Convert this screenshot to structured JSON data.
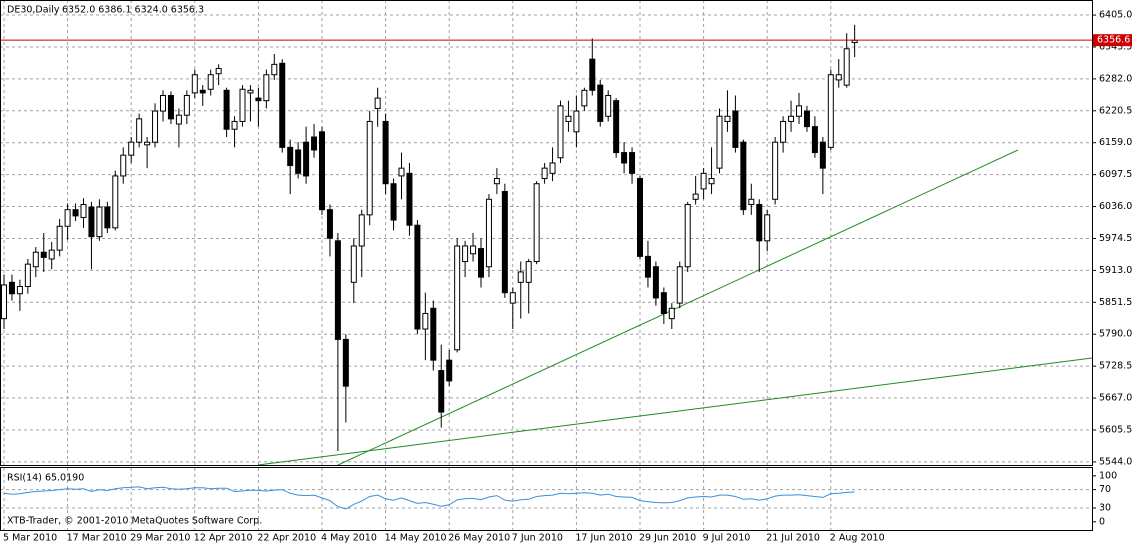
{
  "watermark": "XTB-Trader, © 2001-2010 MetaQuotes Software Corp.",
  "chart_data": [
    {
      "type": "candlestick",
      "title": "DE30,Daily",
      "quote": "6352.0 6386.1 6324.0 6356.3",
      "categories": [
        "5 Mar 2010",
        null,
        null,
        null,
        null,
        null,
        null,
        null,
        "17 Mar 2010",
        null,
        null,
        null,
        null,
        null,
        null,
        null,
        "29 Mar 2010",
        null,
        null,
        null,
        null,
        null,
        null,
        null,
        "12 Apr 2010",
        null,
        null,
        null,
        null,
        null,
        null,
        null,
        "22 Apr 2010",
        null,
        null,
        null,
        null,
        null,
        null,
        null,
        "4 May 2010",
        null,
        null,
        null,
        null,
        null,
        null,
        null,
        "14 May 2010",
        null,
        null,
        null,
        null,
        null,
        null,
        null,
        "26 May 2010",
        null,
        null,
        null,
        null,
        null,
        null,
        null,
        "7 Jun 2010",
        null,
        null,
        null,
        null,
        null,
        null,
        null,
        "17 Jun 2010",
        null,
        null,
        null,
        null,
        null,
        null,
        null,
        "29 Jun 2010",
        null,
        null,
        null,
        null,
        null,
        null,
        null,
        "9 Jul 2010",
        null,
        null,
        null,
        null,
        null,
        null,
        null,
        "21 Jul 2010",
        null,
        null,
        null,
        null,
        null,
        null,
        null,
        "2 Aug 2010",
        null,
        null,
        null
      ],
      "open": [
        5820,
        5890,
        5868,
        5882,
        5920,
        5948,
        5935,
        5952,
        5998,
        6030,
        6015,
        6035,
        5978,
        6035,
        5995,
        6095,
        6135,
        6160,
        6155,
        6160,
        6220,
        6250,
        6195,
        6212,
        6255,
        6260,
        6262,
        6292,
        6260,
        6185,
        6200,
        6255,
        6245,
        6240,
        6290,
        6312,
        6150,
        6145,
        6160,
        6170,
        6180,
        6030,
        5970,
        5780,
        5890,
        5960,
        6020,
        6225,
        6200,
        6080,
        6095,
        6100,
        6000,
        5800,
        5840,
        5720,
        5740,
        5760,
        5930,
        5945,
        5955,
        5920,
        6080,
        6065,
        5850,
        5890,
        5890,
        5930,
        6090,
        6100,
        6130,
        6200,
        6180,
        6230,
        6320,
        6270,
        6210,
        6240,
        6140,
        6140,
        6090,
        5940,
        5920,
        5870,
        5820,
        5850,
        5920,
        6050,
        6070,
        6080,
        6110,
        6200,
        6220,
        6160,
        6040,
        6040,
        5970,
        6050,
        6160,
        6200,
        6210,
        6220,
        6190,
        6160,
        6150,
        6280,
        6270,
        6352
      ],
      "high": [
        5905,
        5905,
        5895,
        5935,
        5958,
        5985,
        5968,
        6012,
        6042,
        6042,
        6052,
        6045,
        6050,
        6045,
        6105,
        6150,
        6170,
        6215,
        6170,
        6235,
        6260,
        6258,
        6225,
        6260,
        6300,
        6270,
        6300,
        6310,
        6265,
        6210,
        6270,
        6270,
        6265,
        6300,
        6330,
        6320,
        6165,
        6160,
        6190,
        6195,
        6190,
        6040,
        5985,
        5790,
        5975,
        6030,
        6220,
        6265,
        6215,
        6090,
        6140,
        6120,
        6010,
        5870,
        5855,
        5770,
        5760,
        5975,
        5970,
        5985,
        5975,
        6060,
        6110,
        6080,
        5880,
        5930,
        5935,
        6085,
        6120,
        6150,
        6240,
        6240,
        6250,
        6265,
        6360,
        6280,
        6260,
        6245,
        6160,
        6150,
        6095,
        5970,
        5930,
        5880,
        5850,
        5930,
        6045,
        6095,
        6110,
        6150,
        6225,
        6260,
        6250,
        6165,
        6080,
        6050,
        6030,
        6170,
        6210,
        6240,
        6255,
        6230,
        6210,
        6170,
        6300,
        6320,
        6370,
        6386.1
      ],
      "low": [
        5800,
        5855,
        5835,
        5868,
        5900,
        5910,
        5915,
        5940,
        5972,
        6008,
        5995,
        5915,
        5970,
        5985,
        5990,
        6080,
        6120,
        6150,
        6110,
        6150,
        6200,
        6195,
        6150,
        6195,
        6245,
        6230,
        6250,
        6270,
        6170,
        6150,
        6190,
        6200,
        6190,
        6225,
        6280,
        6140,
        6060,
        6090,
        6080,
        6130,
        6020,
        5940,
        5565,
        5620,
        5850,
        5900,
        6000,
        6190,
        6060,
        5990,
        6050,
        5980,
        5790,
        5740,
        5720,
        5610,
        5690,
        5755,
        5900,
        5930,
        5880,
        5900,
        6060,
        5860,
        5800,
        5820,
        5830,
        5925,
        6080,
        6085,
        6120,
        6180,
        6150,
        6220,
        6250,
        6190,
        6200,
        6130,
        6100,
        6080,
        5935,
        5880,
        5845,
        5810,
        5800,
        5840,
        5910,
        6040,
        6050,
        6060,
        6100,
        6180,
        6140,
        6020,
        6020,
        5910,
        5950,
        6040,
        6140,
        6180,
        6195,
        6180,
        6130,
        6060,
        6145,
        6265,
        6265,
        6324
      ],
      "close": [
        5885,
        5868,
        5882,
        5925,
        5948,
        5938,
        5952,
        5998,
        6030,
        6018,
        6040,
        5978,
        6035,
        5995,
        6095,
        6135,
        6160,
        6205,
        6160,
        6220,
        6250,
        6205,
        6212,
        6250,
        6290,
        6255,
        6290,
        6302,
        6185,
        6200,
        6262,
        6260,
        6240,
        6290,
        6310,
        6150,
        6115,
        6100,
        6095,
        6145,
        6030,
        5975,
        5780,
        5690,
        5960,
        6020,
        6200,
        6245,
        6080,
        6010,
        6110,
        6000,
        5800,
        5830,
        5740,
        5640,
        5700,
        5960,
        5960,
        5960,
        5900,
        6050,
        6090,
        5870,
        5870,
        5910,
        5930,
        6080,
        6110,
        6120,
        6230,
        6210,
        6220,
        6260,
        6260,
        6200,
        6250,
        6140,
        6120,
        6100,
        5940,
        5900,
        5860,
        5830,
        5840,
        5920,
        6040,
        6060,
        6100,
        6090,
        6210,
        6210,
        6150,
        6030,
        6050,
        5970,
        6020,
        6160,
        6200,
        6210,
        6230,
        6190,
        6140,
        6110,
        6290,
        6290,
        6340,
        6356.3
      ],
      "bull_color": "#ffffff",
      "bear_color": "#000000",
      "outline_color": "#000000",
      "current_price": {
        "value": 6356.6,
        "label": "6356.6"
      },
      "price_line_color": "#cc0000",
      "ylim": [
        5538,
        6434
      ],
      "yticks": [
        {
          "value": 6405,
          "label": "6405.0"
        },
        {
          "value": 6343.5,
          "label": "6343.5"
        },
        {
          "value": 6282,
          "label": "6282.0"
        },
        {
          "value": 6220.5,
          "label": "6220.5"
        },
        {
          "value": 6159,
          "label": "6159.0"
        },
        {
          "value": 6097.5,
          "label": "6097.5"
        },
        {
          "value": 6036,
          "label": "6036.0"
        },
        {
          "value": 5974.5,
          "label": "5974.5"
        },
        {
          "value": 5913,
          "label": "5913.0"
        },
        {
          "value": 5851.5,
          "label": "5851.5"
        },
        {
          "value": 5790,
          "label": "5790.0"
        },
        {
          "value": 5728.5,
          "label": "5728.5"
        },
        {
          "value": 5667,
          "label": "5667.0"
        },
        {
          "value": 5605.5,
          "label": "5605.5"
        },
        {
          "value": 5544,
          "label": "5544.0"
        }
      ],
      "grid": true
    },
    {
      "type": "line",
      "title": "RSI(14) 65.0190",
      "series": [
        {
          "name": "RSI(14)",
          "color": "#3a8fd8",
          "values": [
            62,
            60,
            61,
            64,
            66,
            67,
            68,
            70,
            72,
            71,
            72,
            66,
            70,
            68,
            72,
            74,
            75,
            76,
            72,
            74,
            75,
            72,
            71,
            72,
            74,
            74,
            72,
            73,
            73,
            66,
            67,
            69,
            68,
            67,
            69,
            70,
            62,
            58,
            57,
            58,
            52,
            46,
            33,
            28,
            38,
            45,
            55,
            58,
            50,
            47,
            52,
            46,
            40,
            42,
            38,
            34,
            37,
            48,
            50,
            51,
            48,
            54,
            57,
            47,
            45,
            48,
            49,
            55,
            57,
            58,
            62,
            61,
            62,
            63,
            62,
            58,
            60,
            55,
            54,
            53,
            46,
            44,
            42,
            41,
            42,
            46,
            52,
            54,
            55,
            54,
            58,
            58,
            55,
            49,
            50,
            47,
            50,
            56,
            58,
            58,
            59,
            57,
            55,
            53,
            61,
            62,
            64,
            65.019
          ]
        }
      ],
      "ylim": [
        -20,
        117
      ],
      "yticks": [
        100,
        70,
        30,
        0
      ]
    }
  ]
}
